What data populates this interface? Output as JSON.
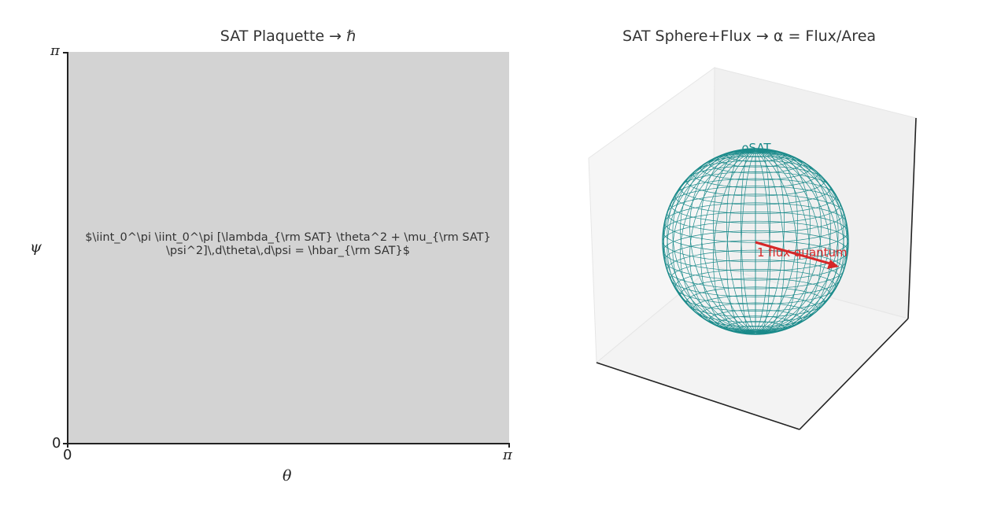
{
  "chart_data": [
    {
      "type": "heatmap",
      "title": "SAT Plaquette → ℏ",
      "xlabel": "θ",
      "ylabel": "ψ",
      "xlim": [
        0,
        3.14159
      ],
      "ylim": [
        0,
        3.14159
      ],
      "xticks": [
        "0",
        "π"
      ],
      "yticks": [
        "0",
        "π"
      ],
      "fill_color": "#d3d3d3",
      "annotations": [
        "$\\iint_0^\\pi \\iint_0^\\pi [\\lambda_{\\rm SAT} \\theta^2 + \\mu_{\\rm SAT}",
        "\\psi^2]\\,d\\theta\\,d\\psi = \\hbar_{\\rm SAT}$"
      ]
    },
    {
      "type": "3d",
      "title": "SAT Sphere+Flux → α = Flux/Area",
      "sphere": {
        "label": "ρSAT",
        "color": "#1a8a8a",
        "style": "wireframe"
      },
      "arrow": {
        "label": "1 flux quantum",
        "color": "#d62728"
      }
    }
  ]
}
